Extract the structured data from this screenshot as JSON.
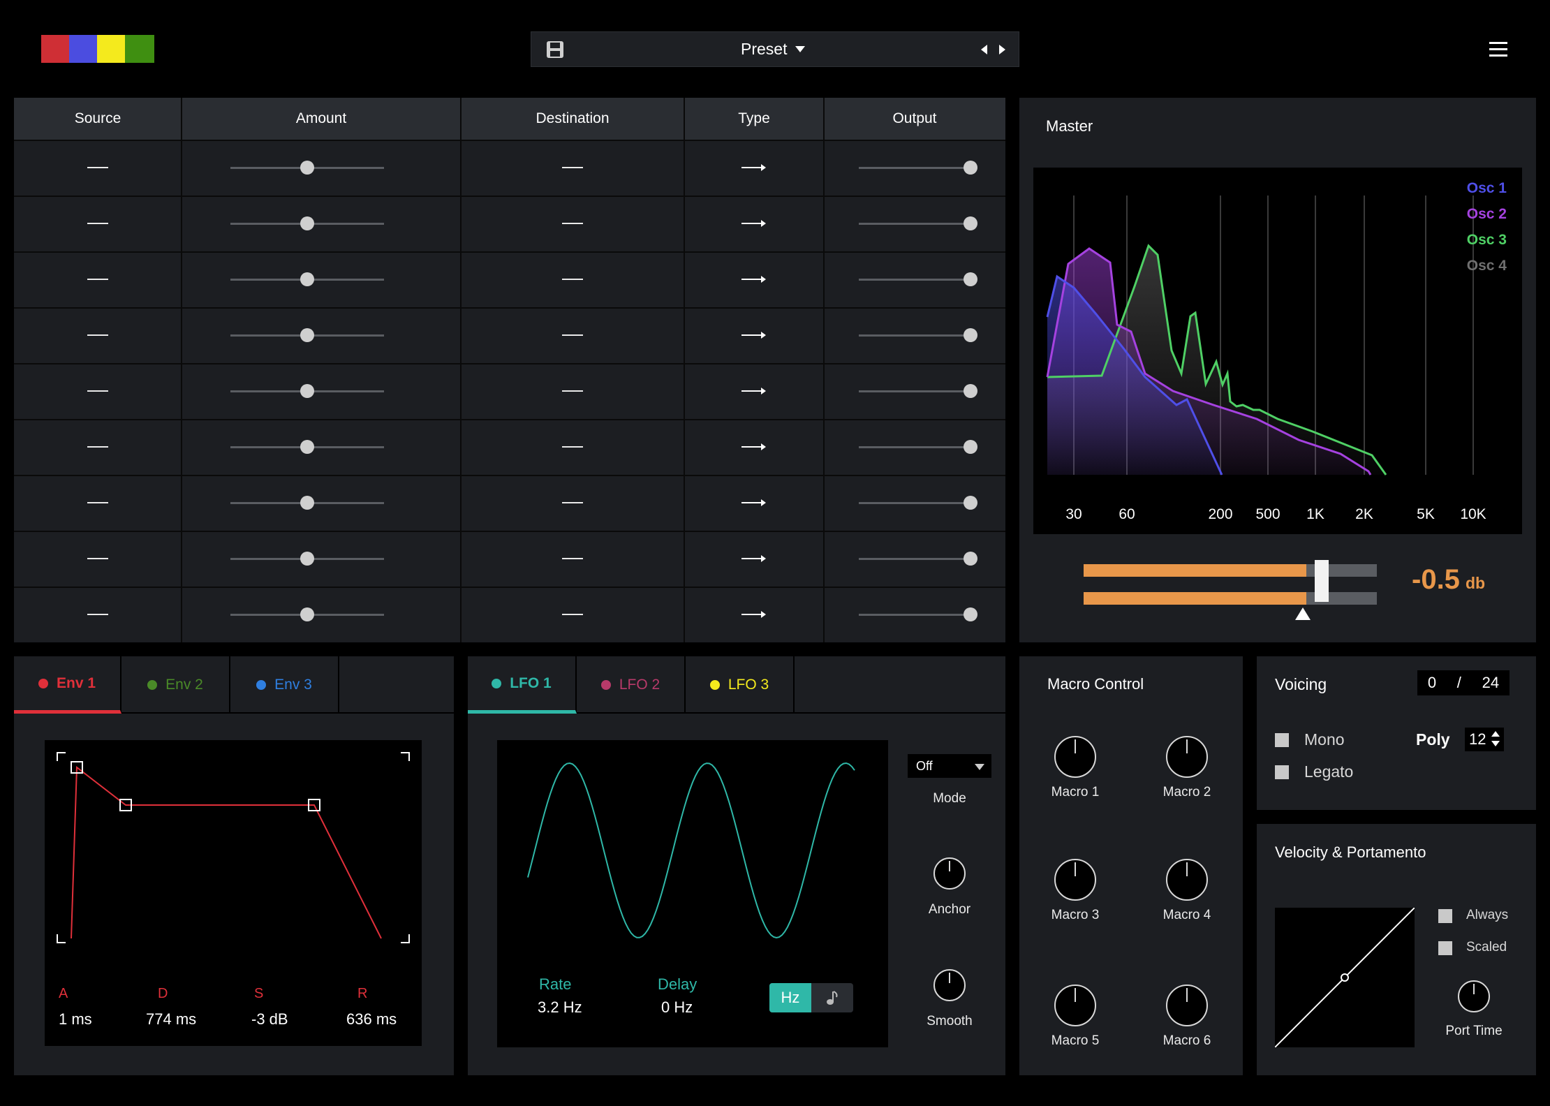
{
  "topbar": {
    "colors": [
      "#cf2f35",
      "#4b4de0",
      "#f4ea1d",
      "#3f8f11"
    ],
    "preset_label": "Preset",
    "save_icon": "save-icon",
    "menu_icon": "hamburger-menu-icon"
  },
  "matrix": {
    "headers": [
      "Source",
      "Amount",
      "Destination",
      "Type",
      "Output"
    ],
    "rows": [
      {
        "amount": 0.5,
        "output": 1.0
      },
      {
        "amount": 0.5,
        "output": 1.0
      },
      {
        "amount": 0.5,
        "output": 1.0
      },
      {
        "amount": 0.5,
        "output": 1.0
      },
      {
        "amount": 0.5,
        "output": 1.0
      },
      {
        "amount": 0.5,
        "output": 1.0
      },
      {
        "amount": 0.5,
        "output": 1.0
      },
      {
        "amount": 0.5,
        "output": 1.0
      },
      {
        "amount": 0.5,
        "output": 1.0
      }
    ]
  },
  "master": {
    "title": "Master",
    "freq_labels": [
      "30",
      "60",
      "200",
      "500",
      "1K",
      "2K",
      "5K",
      "10K"
    ],
    "legend": [
      {
        "name": "Osc 1",
        "color": "#4f4fe8"
      },
      {
        "name": "Osc 2",
        "color": "#a542e0"
      },
      {
        "name": "Osc 3",
        "color": "#4fd065"
      },
      {
        "name": "Osc 4",
        "color": "#707070"
      }
    ],
    "meter_level": 0.76,
    "gain_value": "-0.5",
    "gain_unit": "db",
    "accent": "#e8974a"
  },
  "envelope": {
    "tabs": [
      {
        "label": "Env 1",
        "color": "#e0303a"
      },
      {
        "label": "Env 2",
        "color": "#4a8a28"
      },
      {
        "label": "Env 3",
        "color": "#2f7fe0"
      }
    ],
    "params": [
      {
        "name": "A",
        "value": "1 ms"
      },
      {
        "name": "D",
        "value": "774 ms"
      },
      {
        "name": "S",
        "value": "-3 dB"
      },
      {
        "name": "R",
        "value": "636 ms"
      }
    ]
  },
  "lfo": {
    "tabs": [
      {
        "label": "LFO 1",
        "color": "#2fb8a8"
      },
      {
        "label": "LFO 2",
        "color": "#b83a6a"
      },
      {
        "label": "LFO 3",
        "color": "#f4ea1d"
      }
    ],
    "rate_label": "Rate",
    "rate_value": "3.2 Hz",
    "delay_label": "Delay",
    "delay_value": "0 Hz",
    "hz_label": "Hz",
    "mode_value": "Off",
    "mode_label": "Mode",
    "anchor_label": "Anchor",
    "smooth_label": "Smooth"
  },
  "macro": {
    "title": "Macro Control",
    "knobs": [
      "Macro 1",
      "Macro 2",
      "Macro 3",
      "Macro 4",
      "Macro 5",
      "Macro 6"
    ]
  },
  "voicing": {
    "title": "Voicing",
    "current": "0",
    "separator": "/",
    "max": "24",
    "mono_label": "Mono",
    "legato_label": "Legato",
    "poly_label": "Poly",
    "poly_value": "12"
  },
  "velocity": {
    "title": "Velocity & Portamento",
    "always_label": "Always",
    "scaled_label": "Scaled",
    "port_time_label": "Port Time"
  }
}
